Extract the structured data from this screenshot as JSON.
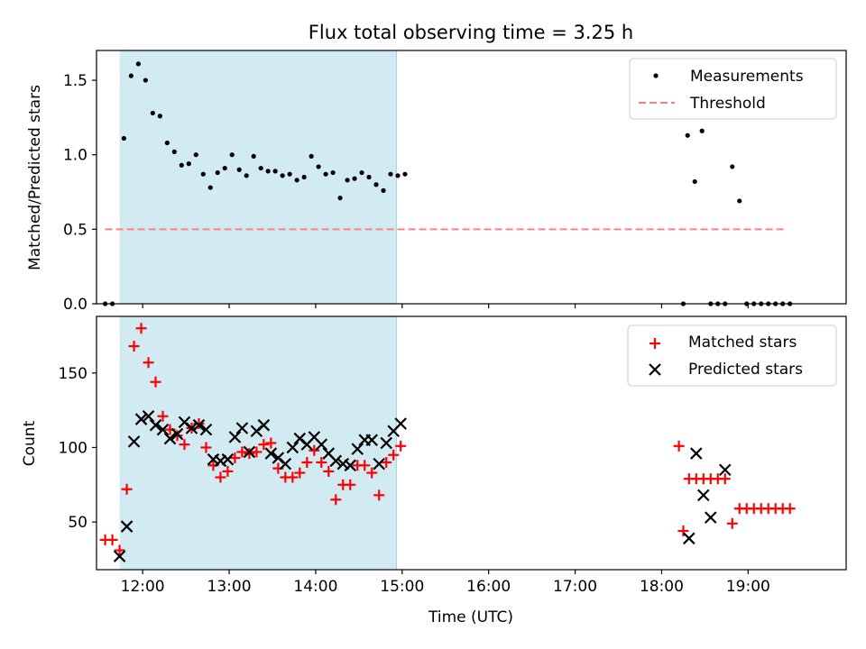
{
  "chart_data": [
    {
      "type": "scatter",
      "title": "Flux total observing time = 3.25 h",
      "ylabel": "Matched/Predicted stars",
      "xlabel": "",
      "xlim": [
        "11:28",
        "20:08"
      ],
      "ylim": [
        0,
        1.7
      ],
      "yticks": [
        0.0,
        0.5,
        1.0,
        1.5
      ],
      "ytick_labels": [
        "0.0",
        "0.5",
        "1.0",
        "1.5"
      ],
      "grid": false,
      "legend_position": "top-right",
      "shaded_interval": {
        "start": "11:44",
        "end": "14:56",
        "color": "#add8e6"
      },
      "series": [
        {
          "name": "Measurements",
          "marker": "dot",
          "color": "#000000",
          "points": [
            [
              "11:34",
              0.0
            ],
            [
              "11:39",
              0.0
            ],
            [
              "11:47",
              1.11
            ],
            [
              "11:52",
              1.53
            ],
            [
              "11:57",
              1.61
            ],
            [
              "12:02",
              1.5
            ],
            [
              "12:07",
              1.28
            ],
            [
              "12:12",
              1.26
            ],
            [
              "12:17",
              1.08
            ],
            [
              "12:22",
              1.02
            ],
            [
              "12:27",
              0.93
            ],
            [
              "12:32",
              0.94
            ],
            [
              "12:37",
              1.0
            ],
            [
              "12:42",
              0.87
            ],
            [
              "12:47",
              0.78
            ],
            [
              "12:52",
              0.88
            ],
            [
              "12:57",
              0.91
            ],
            [
              "13:02",
              1.0
            ],
            [
              "13:07",
              0.9
            ],
            [
              "13:12",
              0.86
            ],
            [
              "13:17",
              0.99
            ],
            [
              "13:22",
              0.91
            ],
            [
              "13:27",
              0.89
            ],
            [
              "13:32",
              0.89
            ],
            [
              "13:37",
              0.86
            ],
            [
              "13:42",
              0.87
            ],
            [
              "13:47",
              0.83
            ],
            [
              "13:52",
              0.85
            ],
            [
              "13:57",
              0.99
            ],
            [
              "14:02",
              0.92
            ],
            [
              "14:07",
              0.87
            ],
            [
              "14:12",
              0.88
            ],
            [
              "14:17",
              0.71
            ],
            [
              "14:22",
              0.83
            ],
            [
              "14:27",
              0.84
            ],
            [
              "14:32",
              0.88
            ],
            [
              "14:37",
              0.85
            ],
            [
              "14:42",
              0.8
            ],
            [
              "14:47",
              0.76
            ],
            [
              "14:52",
              0.87
            ],
            [
              "14:57",
              0.86
            ],
            [
              "15:02",
              0.87
            ],
            [
              "18:15",
              0.0
            ],
            [
              "18:18",
              1.13
            ],
            [
              "18:23",
              0.82
            ],
            [
              "18:28",
              1.16
            ],
            [
              "18:34",
              0.0
            ],
            [
              "18:39",
              0.0
            ],
            [
              "18:44",
              0.0
            ],
            [
              "18:49",
              0.92
            ],
            [
              "18:54",
              0.69
            ],
            [
              "18:59",
              0.0
            ],
            [
              "19:04",
              0.0
            ],
            [
              "19:09",
              0.0
            ],
            [
              "19:14",
              0.0
            ],
            [
              "19:19",
              0.0
            ],
            [
              "19:24",
              0.0
            ],
            [
              "19:29",
              0.0
            ]
          ]
        },
        {
          "name": "Threshold",
          "type": "line",
          "style": "dashed",
          "color": "#ff7f7f",
          "points": [
            [
              "11:34",
              0.5
            ],
            [
              "19:25",
              0.5
            ]
          ]
        }
      ]
    },
    {
      "type": "scatter",
      "title": "",
      "ylabel": "Count",
      "xlabel": "Time (UTC)",
      "xlim": [
        "11:28",
        "20:08"
      ],
      "ylim": [
        18,
        188
      ],
      "yticks": [
        50,
        100,
        150
      ],
      "ytick_labels": [
        "50",
        "100",
        "150"
      ],
      "xticks": [
        "12:00",
        "13:00",
        "14:00",
        "15:00",
        "16:00",
        "17:00",
        "18:00",
        "19:00"
      ],
      "xtick_labels": [
        "12:00",
        "13:00",
        "14:00",
        "15:00",
        "16:00",
        "17:00",
        "18:00",
        "19:00"
      ],
      "grid": false,
      "legend_position": "top-right",
      "shaded_interval": {
        "start": "11:44",
        "end": "14:56",
        "color": "#add8e6"
      },
      "series": [
        {
          "name": "Matched stars",
          "marker": "plus",
          "color": "#ff0000",
          "points": [
            [
              "11:34",
              38
            ],
            [
              "11:39",
              38
            ],
            [
              "11:44",
              31
            ],
            [
              "11:49",
              72
            ],
            [
              "11:54",
              168
            ],
            [
              "11:59",
              180
            ],
            [
              "12:04",
              157
            ],
            [
              "12:09",
              144
            ],
            [
              "12:14",
              121
            ],
            [
              "12:19",
              112
            ],
            [
              "12:24",
              108
            ],
            [
              "12:29",
              102
            ],
            [
              "12:34",
              113
            ],
            [
              "12:39",
              116
            ],
            [
              "12:44",
              100
            ],
            [
              "12:49",
              88
            ],
            [
              "12:54",
              80
            ],
            [
              "12:59",
              84
            ],
            [
              "13:04",
              93
            ],
            [
              "13:09",
              97
            ],
            [
              "13:14",
              96
            ],
            [
              "13:19",
              97
            ],
            [
              "13:24",
              102
            ],
            [
              "13:29",
              103
            ],
            [
              "13:34",
              86
            ],
            [
              "13:39",
              80
            ],
            [
              "13:44",
              80
            ],
            [
              "13:49",
              83
            ],
            [
              "13:54",
              90
            ],
            [
              "13:59",
              98
            ],
            [
              "14:04",
              90
            ],
            [
              "14:09",
              84
            ],
            [
              "14:14",
              65
            ],
            [
              "14:19",
              75
            ],
            [
              "14:24",
              75
            ],
            [
              "14:29",
              88
            ],
            [
              "14:34",
              88
            ],
            [
              "14:39",
              83
            ],
            [
              "14:44",
              68
            ],
            [
              "14:49",
              90
            ],
            [
              "14:54",
              95
            ],
            [
              "14:59",
              101
            ],
            [
              "18:12",
              101
            ],
            [
              "18:15",
              44
            ],
            [
              "18:19",
              79
            ],
            [
              "18:24",
              79
            ],
            [
              "18:29",
              79
            ],
            [
              "18:34",
              79
            ],
            [
              "18:39",
              79
            ],
            [
              "18:44",
              79
            ],
            [
              "18:49",
              49
            ],
            [
              "18:54",
              59
            ],
            [
              "18:59",
              59
            ],
            [
              "19:04",
              59
            ],
            [
              "19:09",
              59
            ],
            [
              "19:14",
              59
            ],
            [
              "19:19",
              59
            ],
            [
              "19:24",
              59
            ],
            [
              "19:29",
              59
            ]
          ]
        },
        {
          "name": "Predicted stars",
          "marker": "x",
          "color": "#000000",
          "points": [
            [
              "11:44",
              27
            ],
            [
              "11:49",
              47
            ],
            [
              "11:54",
              104
            ],
            [
              "11:59",
              119
            ],
            [
              "12:04",
              121
            ],
            [
              "12:09",
              115
            ],
            [
              "12:14",
              112
            ],
            [
              "12:19",
              106
            ],
            [
              "12:24",
              109
            ],
            [
              "12:29",
              117
            ],
            [
              "12:34",
              113
            ],
            [
              "12:39",
              115
            ],
            [
              "12:44",
              112
            ],
            [
              "12:49",
              92
            ],
            [
              "12:54",
              91
            ],
            [
              "12:59",
              92
            ],
            [
              "13:04",
              107
            ],
            [
              "13:09",
              113
            ],
            [
              "13:14",
              97
            ],
            [
              "13:19",
              111
            ],
            [
              "13:24",
              115
            ],
            [
              "13:29",
              96
            ],
            [
              "13:34",
              93
            ],
            [
              "13:39",
              89
            ],
            [
              "13:44",
              100
            ],
            [
              "13:49",
              106
            ],
            [
              "13:54",
              102
            ],
            [
              "13:59",
              107
            ],
            [
              "14:04",
              102
            ],
            [
              "14:09",
              96
            ],
            [
              "14:14",
              91
            ],
            [
              "14:19",
              89
            ],
            [
              "14:24",
              88
            ],
            [
              "14:29",
              99
            ],
            [
              "14:34",
              105
            ],
            [
              "14:39",
              105
            ],
            [
              "14:44",
              89
            ],
            [
              "14:49",
              103
            ],
            [
              "14:54",
              111
            ],
            [
              "14:59",
              116
            ],
            [
              "18:19",
              39
            ],
            [
              "18:24",
              96
            ],
            [
              "18:29",
              68
            ],
            [
              "18:34",
              53
            ],
            [
              "18:44",
              85
            ]
          ]
        }
      ]
    }
  ]
}
